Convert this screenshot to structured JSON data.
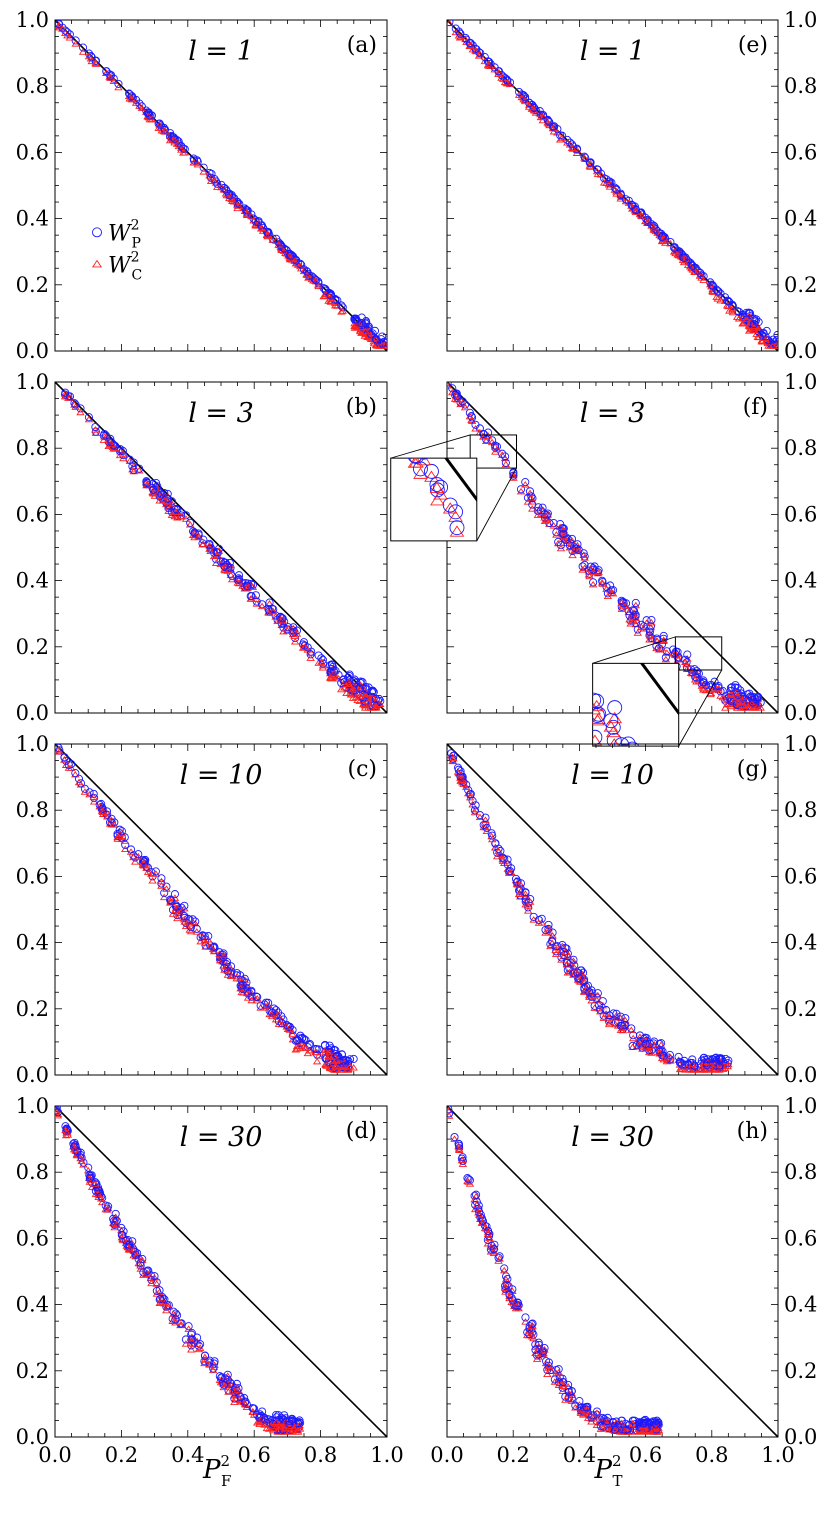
{
  "colors": {
    "wp": "#1a1aff",
    "wc": "#ff2020",
    "axis": "#000000",
    "diagonal": "#000000"
  },
  "chart_data": {
    "type": "scatter",
    "legend": {
      "placement": "left, panel (a)",
      "entries": [
        {
          "key": "wp",
          "base": "W",
          "sup": "2",
          "sub": "P",
          "marker": "circle"
        },
        {
          "key": "wc",
          "base": "W",
          "sup": "2",
          "sub": "C",
          "marker": "triangle"
        }
      ]
    },
    "xlim": [
      0,
      1
    ],
    "ylim": [
      0,
      1
    ],
    "xticks": [
      "0.0",
      "0.2",
      "0.4",
      "0.6",
      "0.8",
      "1.0"
    ],
    "yticks": [
      "0.0",
      "0.2",
      "0.4",
      "0.6",
      "0.8",
      "1.0"
    ],
    "xlabels": [
      {
        "column": 0,
        "base": "P",
        "sup": "2",
        "sub": "F"
      },
      {
        "column": 1,
        "base": "P",
        "sup": "2",
        "sub": "T"
      }
    ],
    "reference_line": {
      "from": [
        0,
        1
      ],
      "to": [
        1,
        0
      ]
    },
    "panels": [
      {
        "id": "a",
        "label": "(a)",
        "l_label": "l = 1",
        "column": 0,
        "row": 0,
        "xend": 1.0,
        "curve": 1.0,
        "noise": 0.003
      },
      {
        "id": "b",
        "label": "(b)",
        "l_label": "l = 3",
        "column": 0,
        "row": 1,
        "xend": 0.98,
        "curve": 1.07,
        "noise": 0.012
      },
      {
        "id": "c",
        "label": "(c)",
        "l_label": "l = 10",
        "column": 0,
        "row": 2,
        "xend": 0.9,
        "curve": 1.28,
        "noise": 0.014
      },
      {
        "id": "d",
        "label": "(d)",
        "l_label": "l = 30",
        "column": 0,
        "row": 3,
        "xend": 0.74,
        "curve": 1.5,
        "noise": 0.014
      },
      {
        "id": "e",
        "label": "(e)",
        "l_label": "l = 1",
        "column": 1,
        "row": 0,
        "xend": 1.0,
        "curve": 1.0,
        "noise": 0.003
      },
      {
        "id": "f",
        "label": "(f)",
        "l_label": "l = 3",
        "column": 1,
        "row": 1,
        "xend": 0.95,
        "curve": 1.35,
        "noise": 0.02,
        "insets": [
          {
            "zoom_x": [
              0.07,
              0.21
            ],
            "zoom_y": [
              0.74,
              0.84
            ],
            "box_x": [
              -0.17,
              0.09
            ],
            "box_y": [
              0.52,
              0.77
            ]
          },
          {
            "zoom_x": [
              0.69,
              0.83
            ],
            "zoom_y": [
              0.13,
              0.23
            ],
            "box_x": [
              0.44,
              0.7
            ],
            "box_y": [
              -0.1,
              0.15
            ]
          }
        ]
      },
      {
        "id": "g",
        "label": "(g)",
        "l_label": "l = 10",
        "column": 1,
        "row": 2,
        "xend": 0.85,
        "curve": 1.9,
        "noise": 0.018
      },
      {
        "id": "h",
        "label": "(h)",
        "l_label": "l = 30",
        "column": 1,
        "row": 3,
        "xend": 0.64,
        "curve": 2.3,
        "noise": 0.016
      }
    ]
  }
}
